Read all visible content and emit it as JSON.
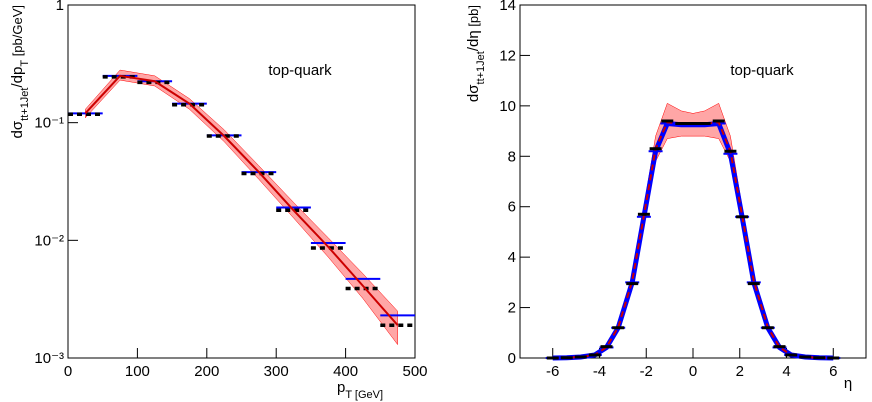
{
  "chart_data": [
    {
      "type": "histogram",
      "log_y": true,
      "annotation": "top-quark",
      "xlabel": [
        {
          "text": "p"
        },
        {
          "text": "T [GeV]",
          "sub": true
        }
      ],
      "ylabel": [
        {
          "text": "dσ"
        },
        {
          "text": "tt+1Jet",
          "sub": true
        },
        {
          "text": "/dp"
        },
        {
          "text": "T",
          "sub": true
        },
        {
          "text": " [pb/GeV]",
          "small": true
        }
      ],
      "bins": [
        0,
        50,
        100,
        150,
        200,
        250,
        300,
        350,
        400,
        450,
        500
      ],
      "xlim": [
        0,
        500
      ],
      "xticks": [
        0,
        100,
        200,
        300,
        400,
        500
      ],
      "ylim": [
        0.001,
        1
      ],
      "yticks": [
        {
          "value": 0.001,
          "label": "10⁻³"
        },
        {
          "value": 0.01,
          "label": "10⁻²"
        },
        {
          "value": 0.1,
          "label": "10⁻¹"
        },
        1
      ],
      "band": {
        "color": "#ff0000",
        "lower": [
          0.11,
          0.23,
          0.205,
          0.13,
          0.069,
          0.033,
          0.0155,
          0.0072,
          0.0032,
          0.0013
        ],
        "upper": [
          0.13,
          0.28,
          0.25,
          0.16,
          0.087,
          0.043,
          0.021,
          0.0105,
          0.0052,
          0.0025
        ]
      },
      "series": [
        {
          "color": "#0000ff",
          "style": "step",
          "values": [
            0.12,
            0.25,
            0.225,
            0.145,
            0.078,
            0.038,
            0.019,
            0.0095,
            0.0047,
            0.0023
          ]
        },
        {
          "color": "#000000",
          "style": "dashed-step",
          "values": [
            0.118,
            0.245,
            0.22,
            0.142,
            0.077,
            0.037,
            0.018,
            0.0086,
            0.0039,
            0.0019
          ]
        },
        {
          "color": "#cc0000",
          "style": "line",
          "values": [
            0.12,
            0.25,
            0.225,
            0.145,
            0.077,
            0.038,
            0.018,
            0.0088,
            0.0041,
            0.0019
          ]
        }
      ]
    },
    {
      "type": "line",
      "log_y": false,
      "annotation": "top-quark",
      "xlabel": [
        {
          "text": "η"
        }
      ],
      "ylabel": [
        {
          "text": "dσ"
        },
        {
          "text": "tt+1Jet",
          "sub": true
        },
        {
          "text": "/dη"
        },
        {
          "text": " [pb]",
          "small": true
        }
      ],
      "x": [
        -6,
        -5.4,
        -4.8,
        -4.2,
        -3.7,
        -3.2,
        -2.6,
        -2.1,
        -1.6,
        -1.1,
        -0.5,
        0,
        0.5,
        1.1,
        1.6,
        2.1,
        2.6,
        3.2,
        3.7,
        4.2,
        4.8,
        5.4,
        6
      ],
      "xlim": [
        -7.4,
        7.4
      ],
      "xticks": [
        -6,
        -4,
        -2,
        0,
        2,
        4,
        6
      ],
      "ylim": [
        0,
        14
      ],
      "yticks": [
        0,
        2,
        4,
        6,
        8,
        10,
        12,
        14
      ],
      "band": {
        "color": "#ff0000",
        "lower": [
          0,
          0.01,
          0.03,
          0.09,
          0.35,
          1.1,
          2.8,
          5.3,
          7.8,
          8.7,
          8.8,
          8.8,
          8.8,
          8.7,
          7.8,
          5.3,
          2.8,
          1.1,
          0.35,
          0.09,
          0.03,
          0.01,
          0
        ],
        "upper": [
          0,
          0.02,
          0.06,
          0.15,
          0.5,
          1.35,
          3.3,
          6.0,
          8.8,
          10.1,
          9.8,
          9.7,
          9.8,
          10.1,
          8.8,
          6.0,
          3.3,
          1.35,
          0.5,
          0.15,
          0.06,
          0.02,
          0
        ]
      },
      "series": [
        {
          "color": "#0000ff",
          "style": "thick-line",
          "values": [
            0,
            0.01,
            0.04,
            0.12,
            0.42,
            1.2,
            3.0,
            5.6,
            8.2,
            9.3,
            9.25,
            9.25,
            9.25,
            9.3,
            8.1,
            5.6,
            3.0,
            1.2,
            0.42,
            0.12,
            0.04,
            0.01,
            0
          ]
        },
        {
          "color": "#cc0000",
          "style": "dashed-line",
          "values": [
            0,
            0.01,
            0.04,
            0.12,
            0.43,
            1.22,
            3.05,
            5.65,
            8.3,
            9.35,
            9.3,
            9.3,
            9.3,
            9.35,
            8.2,
            5.65,
            3.05,
            1.22,
            0.43,
            0.12,
            0.04,
            0.01,
            0
          ]
        },
        {
          "color": "#000000",
          "style": "marker",
          "values": [
            0,
            0.01,
            0.04,
            0.12,
            0.45,
            1.2,
            2.95,
            5.7,
            8.3,
            9.4,
            9.3,
            9.3,
            9.3,
            9.4,
            8.2,
            5.6,
            2.95,
            1.2,
            0.45,
            0.12,
            0.04,
            0.01,
            0
          ]
        }
      ]
    }
  ]
}
